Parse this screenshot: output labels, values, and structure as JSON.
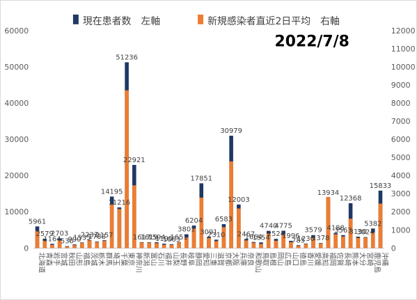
{
  "chart_data": {
    "type": "bar",
    "date_label": "2022/7/8",
    "categories": [
      "北海道",
      "青森",
      "岩手",
      "宮城",
      "秋田",
      "山形",
      "福島",
      "茨城",
      "栃木",
      "群馬",
      "埼玉",
      "千葉",
      "東京",
      "神奈川",
      "新潟",
      "富山",
      "石川",
      "福井",
      "山梨",
      "長野",
      "岐阜",
      "静岡",
      "愛知",
      "三重",
      "滋賀",
      "京都",
      "大阪",
      "兵庫",
      "奈良",
      "和歌山",
      "鳥取",
      "島根",
      "岡山",
      "広島",
      "山口",
      "徳島",
      "香川",
      "愛媛",
      "高知",
      "福岡",
      "佐賀",
      "長崎",
      "熊本",
      "大分",
      "宮崎",
      "鹿児島",
      "沖縄"
    ],
    "series": [
      {
        "name": "現在患者数",
        "axis_label": "左軸",
        "color": "#1f3864",
        "axis": "left",
        "values": [
          5961,
          2579,
          1164,
          2703,
          530,
          990,
          1535,
          2237,
          1788,
          2157,
          14195,
          11216,
          51236,
          22921,
          1617,
          1619,
          1594,
          1190,
          1063,
          1651,
          3801,
          6204,
          17851,
          3091,
          2310,
          6583,
          30979,
          12003,
          2467,
          1664,
          1554,
          4740,
          2524,
          4775,
          1996,
          785,
          1230,
          3579,
          1378,
          13934,
          4188,
          3563,
          12368,
          3130,
          3024,
          5382,
          15833
        ]
      },
      {
        "name": "新規感染者直近2日平均",
        "axis_label": "右軸",
        "color": "#ed7d31",
        "axis": "right",
        "values": [
          940,
          400,
          180,
          420,
          80,
          160,
          280,
          420,
          330,
          400,
          2400,
          2150,
          8700,
          3460,
          300,
          300,
          270,
          180,
          180,
          310,
          580,
          1070,
          2780,
          550,
          380,
          1150,
          4780,
          2180,
          420,
          290,
          230,
          800,
          400,
          750,
          330,
          120,
          220,
          560,
          250,
          2820,
          760,
          640,
          1620,
          560,
          580,
          860,
          2450
        ]
      }
    ],
    "data_labels": [
      "5961",
      "2579",
      "1164",
      "2703",
      "530",
      "990",
      "1535",
      "2237",
      "1788",
      "2157",
      "14195",
      "11216",
      "51236",
      "22921",
      "1617",
      "1619",
      "1594",
      "1190",
      "1063",
      "1651",
      "3801",
      "6204",
      "17851",
      "3091",
      "2310",
      "6583",
      "30979",
      "12003",
      "2467",
      "1664",
      "1554",
      "4740",
      "2524",
      "4775",
      "1996",
      "785",
      "1230",
      "3579",
      "1378",
      "13934",
      "4188",
      "3563",
      "12368",
      "3130",
      "3024",
      "5382",
      "15833"
    ],
    "y_left": {
      "min": 0,
      "max": 60000,
      "step": 10000
    },
    "y_right": {
      "min": 0,
      "max": 12000,
      "step": 1000
    },
    "legend_position": "top",
    "grid": false
  }
}
